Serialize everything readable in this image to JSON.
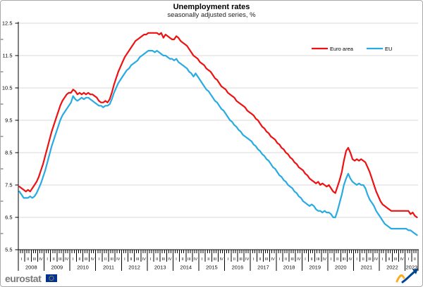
{
  "header": {
    "title": "Unemployment rates",
    "subtitle": "seasonally adjusted series, %"
  },
  "footer": {
    "brand": "eurostat"
  },
  "icons": {
    "eu_flag": {
      "name": "eu-flag",
      "blue": "#003399",
      "yellow": "#ffcc00"
    },
    "trend_arrow": {
      "name": "trend-arrow-logo",
      "yellow": "#f8ae21",
      "blue": "#004494"
    }
  },
  "chart_data": {
    "type": "line",
    "title": "Unemployment rates",
    "subtitle": "seasonally adjusted series, %",
    "unit": "%",
    "frequency": "monthly",
    "x_start": "2008-01",
    "x_end": "2023-06",
    "grid": "horizontal",
    "legend_position": "top-right-inside",
    "ylim": [
      5.5,
      12.5
    ],
    "yticks": [
      "5.5",
      "6.5",
      "7.5",
      "8.5",
      "9.5",
      "10.5",
      "11.5",
      "12.5"
    ],
    "years": [
      "2008",
      "2009",
      "2010",
      "2011",
      "2012",
      "2013",
      "2014",
      "2015",
      "2016",
      "2017",
      "2018",
      "2019",
      "2020",
      "2021",
      "2022",
      "2023"
    ],
    "quarter_labels": [
      "I",
      "II",
      "III",
      "IV"
    ],
    "last_year_quarters": 2,
    "axis_color": "#000000",
    "grid_color": "#d9d9d9",
    "series": [
      {
        "name": "Euro area",
        "color": "#ee1111",
        "values": [
          7.45,
          7.4,
          7.35,
          7.3,
          7.35,
          7.3,
          7.4,
          7.5,
          7.6,
          7.75,
          7.95,
          8.15,
          8.4,
          8.65,
          8.9,
          9.15,
          9.35,
          9.55,
          9.75,
          9.95,
          10.1,
          10.2,
          10.3,
          10.35,
          10.35,
          10.45,
          10.4,
          10.3,
          10.35,
          10.3,
          10.35,
          10.3,
          10.35,
          10.3,
          10.3,
          10.25,
          10.2,
          10.1,
          10.05,
          10.05,
          10.1,
          10.05,
          10.15,
          10.35,
          10.6,
          10.8,
          11.0,
          11.15,
          11.3,
          11.45,
          11.55,
          11.65,
          11.75,
          11.85,
          11.95,
          12.0,
          12.05,
          12.1,
          12.15,
          12.15,
          12.2,
          12.2,
          12.2,
          12.2,
          12.2,
          12.15,
          12.2,
          12.05,
          12.15,
          12.1,
          12.05,
          12.0,
          12.0,
          12.1,
          12.05,
          11.95,
          11.9,
          11.85,
          11.8,
          11.7,
          11.6,
          11.5,
          11.45,
          11.4,
          11.3,
          11.25,
          11.2,
          11.1,
          11.05,
          11.0,
          10.9,
          10.8,
          10.75,
          10.65,
          10.55,
          10.5,
          10.45,
          10.35,
          10.3,
          10.25,
          10.2,
          10.1,
          10.05,
          10.0,
          9.95,
          9.9,
          9.8,
          9.75,
          9.7,
          9.65,
          9.55,
          9.5,
          9.4,
          9.3,
          9.25,
          9.15,
          9.1,
          9.0,
          8.95,
          8.9,
          8.8,
          8.75,
          8.65,
          8.6,
          8.5,
          8.45,
          8.35,
          8.3,
          8.2,
          8.15,
          8.05,
          8.0,
          7.95,
          7.85,
          7.8,
          7.7,
          7.65,
          7.6,
          7.55,
          7.6,
          7.5,
          7.55,
          7.5,
          7.45,
          7.5,
          7.4,
          7.3,
          7.25,
          7.45,
          7.65,
          7.9,
          8.25,
          8.55,
          8.65,
          8.5,
          8.3,
          8.25,
          8.3,
          8.25,
          8.3,
          8.25,
          8.2,
          8.05,
          7.9,
          7.7,
          7.5,
          7.3,
          7.15,
          7.0,
          6.9,
          6.85,
          6.8,
          6.75,
          6.7,
          6.7,
          6.7,
          6.7,
          6.7,
          6.7,
          6.7,
          6.7,
          6.7,
          6.6,
          6.65,
          6.55,
          6.5
        ]
      },
      {
        "name": "EU",
        "color": "#29abe2",
        "values": [
          7.3,
          7.2,
          7.1,
          7.1,
          7.1,
          7.15,
          7.1,
          7.15,
          7.25,
          7.4,
          7.55,
          7.75,
          7.95,
          8.2,
          8.45,
          8.7,
          8.9,
          9.1,
          9.3,
          9.5,
          9.65,
          9.75,
          9.85,
          9.95,
          10.05,
          10.25,
          10.15,
          10.1,
          10.15,
          10.2,
          10.15,
          10.2,
          10.2,
          10.15,
          10.1,
          10.05,
          10.0,
          9.95,
          9.95,
          9.9,
          9.95,
          9.95,
          10.0,
          10.15,
          10.35,
          10.5,
          10.65,
          10.75,
          10.85,
          10.95,
          11.05,
          11.1,
          11.2,
          11.25,
          11.3,
          11.35,
          11.45,
          11.5,
          11.55,
          11.6,
          11.65,
          11.65,
          11.65,
          11.6,
          11.65,
          11.6,
          11.55,
          11.5,
          11.5,
          11.45,
          11.4,
          11.4,
          11.35,
          11.4,
          11.3,
          11.25,
          11.2,
          11.15,
          11.1,
          11.0,
          10.95,
          10.85,
          10.95,
          10.85,
          10.75,
          10.65,
          10.55,
          10.45,
          10.4,
          10.3,
          10.2,
          10.1,
          10.05,
          9.95,
          9.85,
          9.8,
          9.7,
          9.6,
          9.5,
          9.45,
          9.35,
          9.3,
          9.2,
          9.15,
          9.05,
          9.0,
          8.95,
          8.9,
          8.85,
          8.75,
          8.7,
          8.6,
          8.55,
          8.45,
          8.4,
          8.3,
          8.25,
          8.15,
          8.05,
          8.0,
          7.9,
          7.8,
          7.75,
          7.65,
          7.6,
          7.5,
          7.45,
          7.4,
          7.3,
          7.25,
          7.15,
          7.1,
          7.0,
          6.95,
          6.9,
          6.85,
          6.9,
          6.85,
          6.75,
          6.7,
          6.7,
          6.65,
          6.7,
          6.65,
          6.65,
          6.6,
          6.5,
          6.5,
          6.7,
          6.95,
          7.2,
          7.5,
          7.7,
          7.85,
          7.7,
          7.6,
          7.55,
          7.5,
          7.55,
          7.5,
          7.5,
          7.4,
          7.2,
          7.05,
          6.95,
          6.85,
          6.7,
          6.6,
          6.5,
          6.4,
          6.3,
          6.25,
          6.2,
          6.15,
          6.15,
          6.15,
          6.15,
          6.15,
          6.15,
          6.15,
          6.15,
          6.1,
          6.1,
          6.05,
          6.0,
          5.95
        ]
      }
    ]
  }
}
